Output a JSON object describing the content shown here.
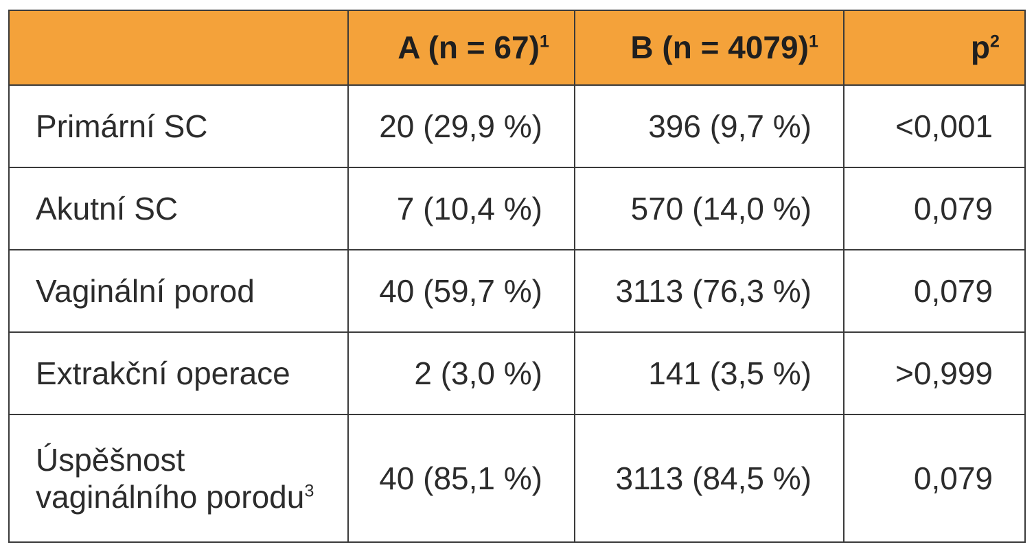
{
  "table": {
    "header": {
      "col0": "",
      "col1": {
        "text": "A (n = 67)",
        "sup": "1"
      },
      "col2": {
        "text": "B (n = 4079)",
        "sup": "1"
      },
      "col3": {
        "text": "p",
        "sup": "2"
      }
    },
    "rows": [
      {
        "label": "Primární SC",
        "label_sup": "",
        "a": "20 (29,9 %)",
        "b": "396 (9,7 %)",
        "p": "<0,001"
      },
      {
        "label": "Akutní SC",
        "label_sup": "",
        "a": "7 (10,4 %)",
        "b": "570 (14,0 %)",
        "p": "0,079"
      },
      {
        "label": "Vaginální porod",
        "label_sup": "",
        "a": "40 (59,7 %)",
        "b": "3113 (76,3 %)",
        "p": "0,079"
      },
      {
        "label": "Extrakční operace",
        "label_sup": "",
        "a": "2 (3,0 %)",
        "b": "141 (3,5 %)",
        "p": ">0,999"
      },
      {
        "label": "Úspěšnost vaginálního porodu",
        "label_sup": "3",
        "a": "40 (85,1 %)",
        "b": "3113 (84,5 %)",
        "p": "0,079"
      }
    ]
  },
  "colors": {
    "header_background": "#f4a23a",
    "border": "#3a3a3a"
  }
}
